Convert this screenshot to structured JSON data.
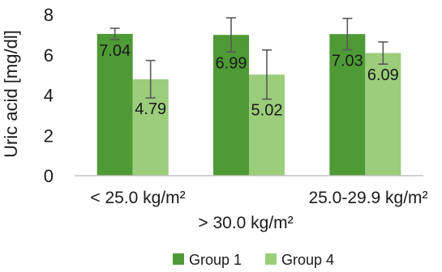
{
  "chart_data": {
    "type": "bar",
    "categories": [
      "< 25.0 kg/m²",
      "> 30.0 kg/m²",
      "25.0-29.9 kg/m²"
    ],
    "series": [
      {
        "name": "Group 1",
        "values": [
          7.04,
          6.99,
          7.03
        ],
        "error": [
          0.28,
          0.85,
          0.78
        ],
        "color": "#4e9a35"
      },
      {
        "name": "Group 4",
        "values": [
          4.79,
          5.02,
          6.09
        ],
        "error": [
          0.93,
          1.22,
          0.55
        ],
        "color": "#9bcd7b"
      }
    ],
    "data_labels": {
      "Group 1": [
        "7.04",
        "6.99",
        "7.03"
      ],
      "Group 4": [
        "4.79",
        "5.02",
        "6.09"
      ]
    },
    "ylabel": "Uric acid [mg/dl]",
    "xlabel": "",
    "title": "",
    "ylim": [
      0,
      8
    ],
    "yticks": [
      0,
      2,
      4,
      6,
      8
    ],
    "grid": false,
    "legend": {
      "position": "bottom",
      "entries": [
        "Group 1",
        "Group 4"
      ]
    }
  }
}
